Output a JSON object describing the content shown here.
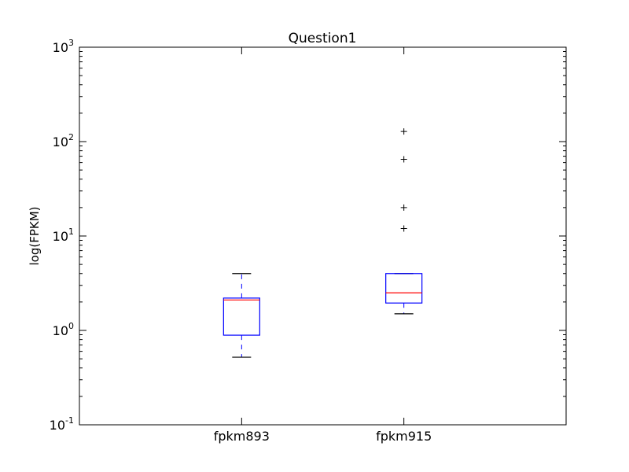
{
  "chart_data": {
    "type": "box",
    "title": "Question1",
    "xlabel": "",
    "ylabel": "log(FPKM)",
    "yscale": "log",
    "ylim": [
      0.1,
      1000
    ],
    "y_ticks": [
      {
        "value": 0.1,
        "base": "10",
        "exp": "-1"
      },
      {
        "value": 1,
        "base": "10",
        "exp": "0"
      },
      {
        "value": 10,
        "base": "10",
        "exp": "1"
      },
      {
        "value": 100,
        "base": "10",
        "exp": "2"
      },
      {
        "value": 1000,
        "base": "10",
        "exp": "3"
      }
    ],
    "categories": [
      "fpkm893",
      "fpkm915"
    ],
    "boxes": [
      {
        "label": "fpkm893",
        "whisker_low": 0.52,
        "q1": 0.89,
        "median": 2.1,
        "q3": 2.2,
        "whisker_high": 4.0,
        "outliers": []
      },
      {
        "label": "fpkm915",
        "whisker_low": 1.5,
        "q1": 1.95,
        "median": 2.5,
        "q3": 4.0,
        "whisker_high": 4.0,
        "outliers": [
          12,
          20,
          65,
          128
        ]
      }
    ],
    "grid": false,
    "colors": {
      "box": "#0000ff",
      "median": "#ff0000",
      "whisker": "#0000ff",
      "cap": "#000000",
      "outlier": "#000000",
      "axes": "#000000"
    }
  }
}
